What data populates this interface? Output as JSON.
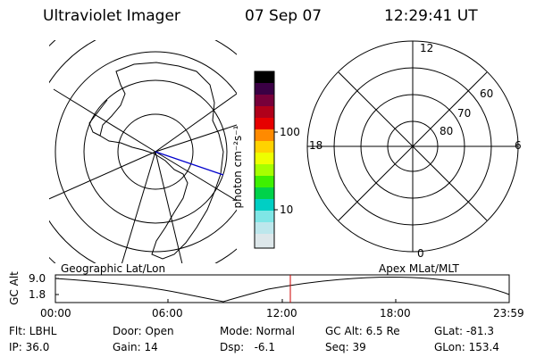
{
  "header": {
    "instrument": "Ultraviolet Imager",
    "date": "07 Sep 07",
    "time": "12:29:41 UT"
  },
  "colorbar": {
    "unit_label": "photon cm⁻²s⁻¹",
    "ticks": [
      "100",
      "10"
    ]
  },
  "polar": {
    "mlt_labels": [
      "12",
      "18",
      "6",
      "0"
    ],
    "mlat_labels": [
      "60",
      "70",
      "80"
    ]
  },
  "panels": {
    "left_caption": "Geographic Lat/Lon",
    "right_caption": "Apex MLat/MLT"
  },
  "altitude_plot": {
    "ylabel": "GC Alt",
    "y_ticks": [
      "9.0",
      "1.8"
    ],
    "x_ticks": [
      "00:00",
      "06:00",
      "12:00",
      "18:00",
      "23:59"
    ],
    "current_time_marker": "12:29:41"
  },
  "status": {
    "flt": "Flt: LBHL",
    "ip": "IP: 36.0",
    "door": "Door: Open",
    "gain": "Gain: 14",
    "mode": "Mode: Normal",
    "dsp": "Dsp:   -6.1",
    "gc_alt": "GC Alt: 6.5 Re",
    "seq": "Seq: 39",
    "glat": "GLat: -81.3",
    "glon": "GLon: 153.4"
  },
  "colors": {
    "foreground": "#000000",
    "background": "#ffffff",
    "projection_line": "#0000cc",
    "time_marker": "#cc0000"
  }
}
